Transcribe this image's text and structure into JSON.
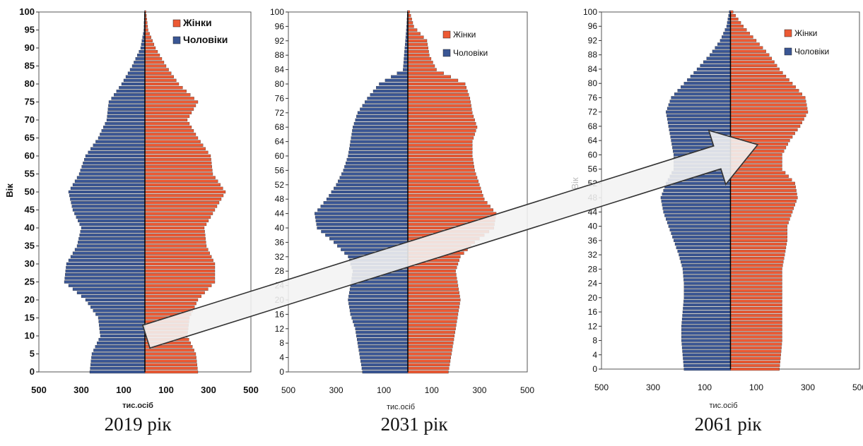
{
  "colors": {
    "women": "#ec5a34",
    "men": "#3a5694",
    "axis": "#000000",
    "arrow_fill": "#f2f2f2",
    "arrow_stroke": "#333333"
  },
  "chart_data": [
    {
      "type": "bar",
      "subtype": "population-pyramid",
      "caption": "2019 рік",
      "xlabel": "тис.осіб",
      "ylabel": "Вік",
      "xlim": [
        -500,
        500
      ],
      "xticks": [
        "500",
        "300",
        "100",
        "100",
        "300",
        "500"
      ],
      "ylim": [
        0,
        100
      ],
      "yticks": [
        "0",
        "5",
        "10",
        "15",
        "20",
        "25",
        "30",
        "35",
        "40",
        "45",
        "50",
        "55",
        "60",
        "65",
        "70",
        "75",
        "80",
        "85",
        "90",
        "95",
        "100"
      ],
      "legend_position": "top-right",
      "series": [
        {
          "name": "Жінки",
          "color": "#ec5a34",
          "values": {
            "ages": [
              0,
              5,
              10,
              15,
              20,
              25,
              30,
              35,
              40,
              45,
              50,
              55,
              60,
              65,
              70,
              75,
              80,
              85,
              90,
              95,
              100
            ],
            "values": [
              250,
              240,
              200,
              210,
              250,
              330,
              330,
              290,
              280,
              330,
              380,
              320,
              310,
              250,
              200,
              250,
              160,
              100,
              50,
              15,
              5
            ]
          }
        },
        {
          "name": "Чоловіки",
          "color": "#3a5694",
          "values": {
            "ages": [
              0,
              5,
              10,
              15,
              20,
              25,
              30,
              35,
              40,
              45,
              50,
              55,
              60,
              65,
              70,
              75,
              80,
              85,
              90,
              95,
              100
            ],
            "values": [
              260,
              250,
              210,
              220,
              280,
              380,
              370,
              320,
              300,
              340,
              360,
              310,
              280,
              220,
              180,
              170,
              110,
              60,
              20,
              5,
              2
            ]
          }
        }
      ]
    },
    {
      "type": "bar",
      "subtype": "population-pyramid",
      "caption": "2031 рік",
      "xlabel": "тис.осіб",
      "ylabel": "",
      "xlim": [
        -500,
        500
      ],
      "xticks": [
        "500",
        "300",
        "100",
        "100",
        "300",
        "500"
      ],
      "ylim": [
        0,
        100
      ],
      "yticks": [
        "0",
        "4",
        "8",
        "12",
        "16",
        "20",
        "24",
        "28",
        "32",
        "36",
        "40",
        "44",
        "48",
        "52",
        "56",
        "60",
        "64",
        "68",
        "72",
        "76",
        "80",
        "84",
        "88",
        "92",
        "96",
        "100"
      ],
      "legend_position": "top-right",
      "series": [
        {
          "name": "Жінки",
          "color": "#ec5a34",
          "values": {
            "ages": [
              0,
              4,
              8,
              12,
              16,
              20,
              24,
              28,
              32,
              36,
              40,
              44,
              48,
              52,
              56,
              60,
              64,
              68,
              72,
              76,
              80,
              84,
              88,
              92,
              96,
              100
            ],
            "values": [
              170,
              180,
              190,
              200,
              210,
              220,
              210,
              200,
              220,
              280,
              360,
              370,
              320,
              300,
              280,
              270,
              270,
              290,
              270,
              260,
              240,
              120,
              90,
              80,
              25,
              8
            ]
          }
        },
        {
          "name": "Чоловіки",
          "color": "#3a5694",
          "values": {
            "ages": [
              0,
              4,
              8,
              12,
              16,
              20,
              24,
              28,
              32,
              36,
              40,
              44,
              48,
              52,
              56,
              60,
              64,
              68,
              72,
              76,
              80,
              84,
              88,
              92,
              96,
              100
            ],
            "values": [
              190,
              200,
              210,
              220,
              240,
              250,
              240,
              230,
              250,
              310,
              380,
              390,
              340,
              300,
              270,
              250,
              240,
              230,
              210,
              170,
              120,
              20,
              15,
              10,
              5,
              2
            ]
          }
        }
      ]
    },
    {
      "type": "bar",
      "subtype": "population-pyramid",
      "caption": "2061 рік",
      "xlabel": "тис.осіб",
      "ylabel": "Вік",
      "xlim": [
        -500,
        500
      ],
      "xticks": [
        "500",
        "300",
        "100",
        "100",
        "300",
        "500"
      ],
      "ylim": [
        0,
        100
      ],
      "yticks": [
        "0",
        "4",
        "8",
        "12",
        "16",
        "20",
        "24",
        "28",
        "32",
        "36",
        "40",
        "44",
        "48",
        "52",
        "56",
        "60",
        "64",
        "68",
        "72",
        "76",
        "80",
        "84",
        "88",
        "92",
        "96",
        "100"
      ],
      "legend_position": "top-right",
      "series": [
        {
          "name": "Жінки",
          "color": "#ec5a34",
          "values": {
            "ages": [
              0,
              4,
              8,
              12,
              16,
              20,
              24,
              28,
              32,
              36,
              40,
              44,
              48,
              52,
              56,
              60,
              64,
              68,
              72,
              76,
              80,
              84,
              88,
              92,
              96,
              100
            ],
            "values": [
              190,
              195,
              200,
              200,
              200,
              200,
              200,
              200,
              210,
              220,
              220,
              240,
              260,
              250,
              200,
              200,
              230,
              270,
              300,
              290,
              240,
              190,
              150,
              100,
              50,
              10
            ]
          }
        },
        {
          "name": "Чоловіки",
          "color": "#3a5694",
          "values": {
            "ages": [
              0,
              4,
              8,
              12,
              16,
              20,
              24,
              28,
              32,
              36,
              40,
              44,
              48,
              52,
              56,
              60,
              64,
              68,
              72,
              76,
              80,
              84,
              88,
              92,
              96,
              100
            ],
            "values": [
              180,
              185,
              190,
              190,
              185,
              180,
              180,
              185,
              200,
              220,
              240,
              260,
              270,
              250,
              220,
              220,
              230,
              240,
              250,
              230,
              180,
              130,
              80,
              40,
              15,
              5
            ]
          }
        }
      ]
    }
  ]
}
